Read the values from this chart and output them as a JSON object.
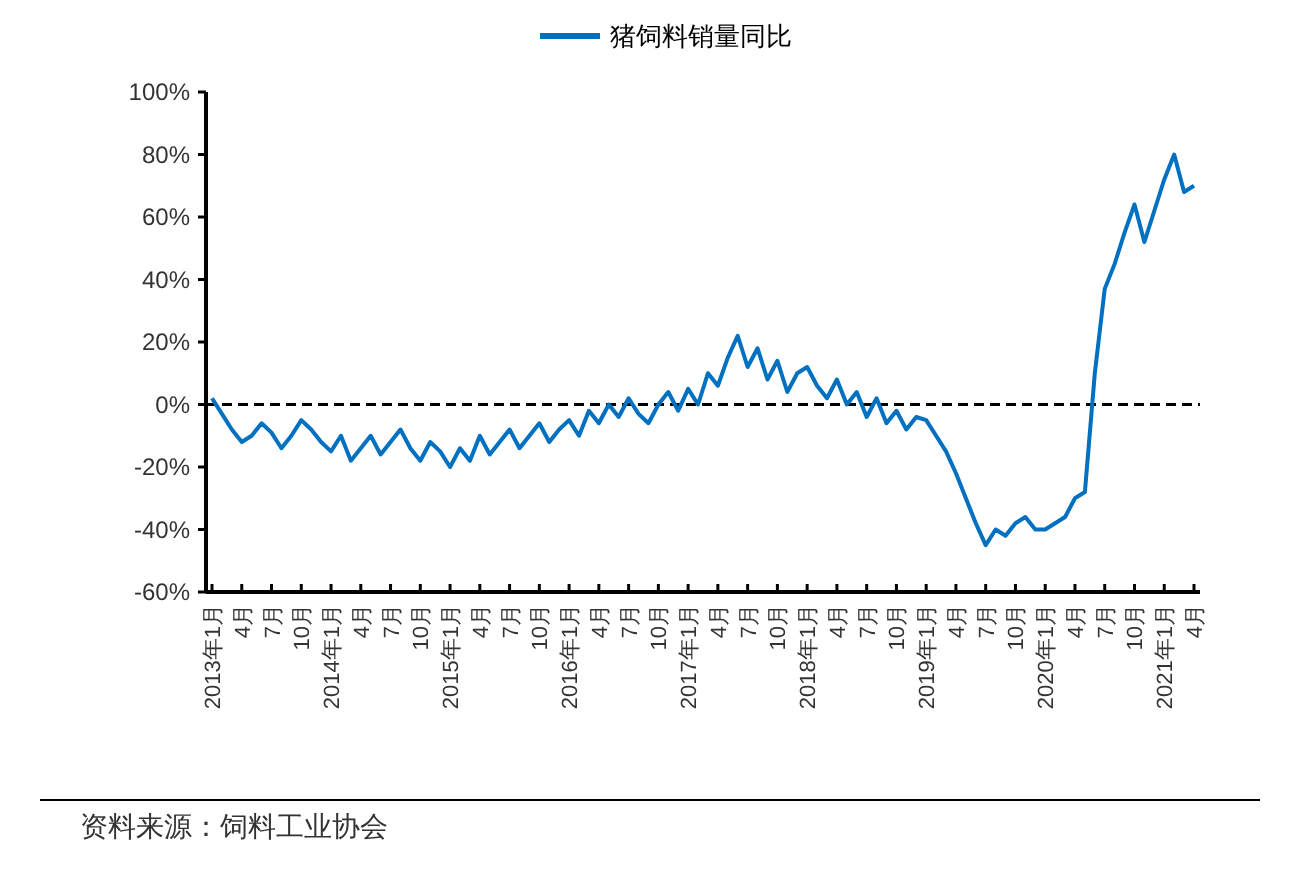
{
  "chart_data": {
    "type": "line",
    "legend": "top",
    "categories": [
      "2013年1月",
      null,
      null,
      "4月",
      null,
      null,
      "7月",
      null,
      null,
      "10月",
      null,
      null,
      "2014年1月",
      null,
      null,
      "4月",
      null,
      null,
      "7月",
      null,
      null,
      "10月",
      null,
      null,
      "2015年1月",
      null,
      null,
      "4月",
      null,
      null,
      "7月",
      null,
      null,
      "10月",
      null,
      null,
      "2016年1月",
      null,
      null,
      "4月",
      null,
      null,
      "7月",
      null,
      null,
      "10月",
      null,
      null,
      "2017年1月",
      null,
      null,
      "4月",
      null,
      null,
      "7月",
      null,
      null,
      "10月",
      null,
      null,
      "2018年1月",
      null,
      null,
      "4月",
      null,
      null,
      "7月",
      null,
      null,
      "10月",
      null,
      null,
      "2019年1月",
      null,
      null,
      "4月",
      null,
      null,
      "7月",
      null,
      null,
      "10月",
      null,
      null,
      "2020年1月",
      null,
      null,
      "4月",
      null,
      null,
      "7月",
      null,
      null,
      "10月",
      null,
      null,
      "2021年1月",
      null,
      null,
      "4月"
    ],
    "series": [
      {
        "name": "猪饲料销量同比",
        "color": "#0070c0",
        "values": [
          2,
          -3,
          -8,
          -12,
          -10,
          -6,
          -9,
          -14,
          -10,
          -5,
          -8,
          -12,
          -15,
          -10,
          -18,
          -14,
          -10,
          -16,
          -12,
          -8,
          -14,
          -18,
          -12,
          -15,
          -20,
          -14,
          -18,
          -10,
          -16,
          -12,
          -8,
          -14,
          -10,
          -6,
          -12,
          -8,
          -5,
          -10,
          -2,
          -6,
          0,
          -4,
          2,
          -3,
          -6,
          0,
          4,
          -2,
          5,
          0,
          10,
          6,
          15,
          22,
          12,
          18,
          8,
          14,
          4,
          10,
          12,
          6,
          2,
          8,
          0,
          4,
          -4,
          2,
          -6,
          -2,
          -8,
          -4,
          -5,
          -10,
          -15,
          -22,
          -30,
          -38,
          -45,
          -40,
          -42,
          -38,
          -36,
          -40,
          -40,
          -38,
          -36,
          -30,
          -28,
          10,
          37,
          45,
          55,
          64,
          52,
          62,
          72,
          80,
          68,
          70
        ]
      }
    ],
    "ylim": [
      -60,
      100
    ],
    "yticks": [
      {
        "value": -60,
        "label": "-60%"
      },
      {
        "value": -40,
        "label": "-40%"
      },
      {
        "value": -20,
        "label": "-20%"
      },
      {
        "value": 0,
        "label": "0%"
      },
      {
        "value": 20,
        "label": "20%"
      },
      {
        "value": 40,
        "label": "40%"
      },
      {
        "value": 60,
        "label": "60%"
      },
      {
        "value": 80,
        "label": "80%"
      },
      {
        "value": 100,
        "label": "100%"
      }
    ],
    "ref_lines": [
      {
        "axis": "y",
        "value": 0,
        "line_style": "dashed",
        "color": "#000000"
      }
    ],
    "annotations": [
      "资料来源：饲料工业协会"
    ]
  }
}
